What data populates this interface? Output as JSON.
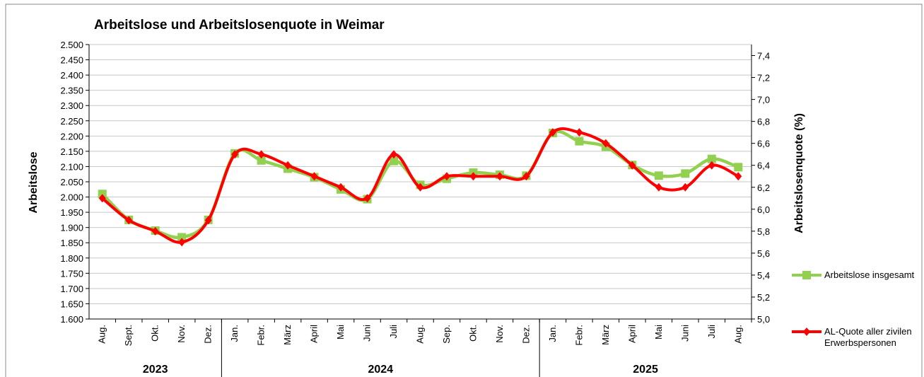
{
  "chart_data": {
    "type": "line",
    "title": "Arbeitslose und Arbeitslosenquote in Weimar",
    "ylabel": "Arbeitslose",
    "y2label": "Arbeitslosenquote (%)",
    "categories": [
      "Aug.",
      "Sept.",
      "Okt.",
      "Nov.",
      "Dez.",
      "Jan.",
      "Febr.",
      "März",
      "April",
      "Mai",
      "Juni",
      "Juli",
      "Aug.",
      "Sep.",
      "Okt.",
      "Nov.",
      "Dez.",
      "Jan.",
      "Febr.",
      "März",
      "April",
      "Mai",
      "Juni",
      "Juli",
      "Aug."
    ],
    "groups": [
      {
        "label": "2023",
        "count": 5
      },
      {
        "label": "2024",
        "count": 12
      },
      {
        "label": "2025",
        "count": 8
      }
    ],
    "series": [
      {
        "name": "Arbeitslose insgesamt",
        "color": "#92d050",
        "marker": "square",
        "values": [
          2010,
          1925,
          1890,
          1868,
          1925,
          2143,
          2120,
          2093,
          2065,
          2025,
          1993,
          2118,
          2040,
          2060,
          2080,
          2073,
          2070,
          2210,
          2183,
          2165,
          2105,
          2070,
          2077,
          2125,
          2098
        ]
      },
      {
        "name": "AL-Quote aller zivilen Erwerbspersonen",
        "color": "#ff0000",
        "marker": "diamond",
        "axis": "y2",
        "values": [
          6.1,
          5.9,
          5.8,
          5.7,
          5.9,
          6.5,
          6.5,
          6.4,
          6.3,
          6.2,
          6.1,
          6.5,
          6.2,
          6.3,
          6.3,
          6.3,
          6.3,
          6.7,
          6.7,
          6.6,
          6.4,
          6.2,
          6.2,
          6.4,
          6.3
        ]
      }
    ],
    "ylim": [
      1600,
      2500
    ],
    "yticks": [
      {
        "value": 1600,
        "label": "1.600"
      },
      {
        "value": 1650,
        "label": "1.650"
      },
      {
        "value": 1700,
        "label": "1.700"
      },
      {
        "value": 1750,
        "label": "1.750"
      },
      {
        "value": 1800,
        "label": "1.800"
      },
      {
        "value": 1850,
        "label": "1.850"
      },
      {
        "value": 1900,
        "label": "1.900"
      },
      {
        "value": 1950,
        "label": "1.950"
      },
      {
        "value": 2000,
        "label": "2.000"
      },
      {
        "value": 2050,
        "label": "2.050"
      },
      {
        "value": 2100,
        "label": "2.100"
      },
      {
        "value": 2150,
        "label": "2.150"
      },
      {
        "value": 2200,
        "label": "2.200"
      },
      {
        "value": 2250,
        "label": "2.250"
      },
      {
        "value": 2300,
        "label": "2.300"
      },
      {
        "value": 2350,
        "label": "2.350"
      },
      {
        "value": 2400,
        "label": "2.400"
      },
      {
        "value": 2450,
        "label": "2.450"
      },
      {
        "value": 2500,
        "label": "2.500"
      }
    ],
    "y2lim": [
      5.0,
      7.5
    ],
    "y2ticks": [
      {
        "value": 5.0,
        "label": "5,0"
      },
      {
        "value": 5.2,
        "label": "5,2"
      },
      {
        "value": 5.4,
        "label": "5,4"
      },
      {
        "value": 5.6,
        "label": "5,6"
      },
      {
        "value": 5.8,
        "label": "5,8"
      },
      {
        "value": 6.0,
        "label": "6,0"
      },
      {
        "value": 6.2,
        "label": "6,2"
      },
      {
        "value": 6.4,
        "label": "6,4"
      },
      {
        "value": 6.6,
        "label": "6,6"
      },
      {
        "value": 6.8,
        "label": "6,8"
      },
      {
        "value": 7.0,
        "label": "7,0"
      },
      {
        "value": 7.2,
        "label": "7,2"
      },
      {
        "value": 7.4,
        "label": "7,4"
      }
    ],
    "grid": true
  }
}
